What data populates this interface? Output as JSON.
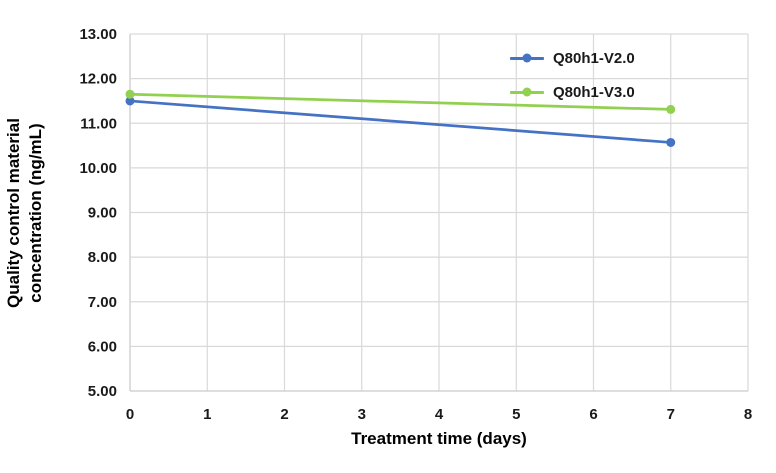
{
  "chart_data": {
    "type": "line",
    "title": "",
    "xlabel": "Treatment time (days)",
    "ylabel": "Quality control material concentration (ng/mL)",
    "ylabel_lines": [
      "Quality control material",
      "concentration (ng/mL)"
    ],
    "xlim": [
      0,
      8
    ],
    "ylim": [
      5,
      13
    ],
    "xticks": [
      "0",
      "1",
      "2",
      "3",
      "4",
      "5",
      "6",
      "7",
      "8"
    ],
    "yticks": [
      "5.00",
      "6.00",
      "7.00",
      "8.00",
      "9.00",
      "10.00",
      "11.00",
      "12.00",
      "13.00"
    ],
    "grid": true,
    "gridline_color": "#D9D9D9",
    "axis_line_color": "#C9C9C9",
    "legend_position": "top-right-inside",
    "x": [
      0,
      7
    ],
    "series": [
      {
        "name": "Q80h1-V2.0",
        "color": "#4472C4",
        "values": [
          11.5,
          10.57
        ]
      },
      {
        "name": "Q80h1-V3.0",
        "color": "#92D050",
        "values": [
          11.65,
          11.31
        ]
      }
    ]
  }
}
